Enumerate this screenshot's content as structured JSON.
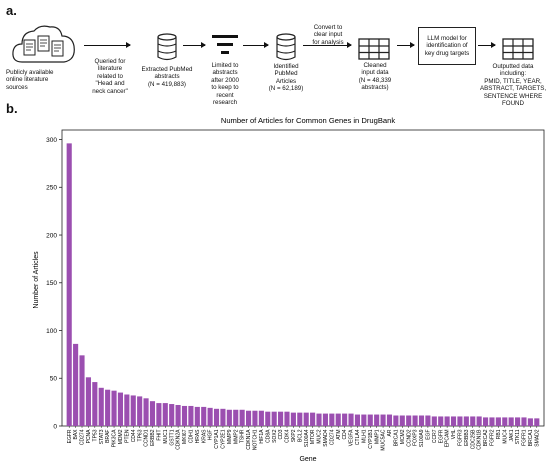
{
  "panels": {
    "a": "a.",
    "b": "b."
  },
  "workflow": {
    "sources": [
      "Publicly available",
      "online literature",
      "sources"
    ],
    "query": [
      "Queried for",
      "literature",
      "related to",
      "\"Head and",
      "neck cancer\""
    ],
    "extracted": [
      "Extracted PubMed",
      "abstracts",
      "(N = 419,883)"
    ],
    "limited": [
      "Limited to",
      "abstracts",
      "after 2000",
      "to keep to",
      "recent",
      "research"
    ],
    "identified": [
      "Identified",
      "PubMed",
      "Articles",
      "(N = 62,189)"
    ],
    "convert": [
      "Convert to",
      "clear input",
      "for analysis"
    ],
    "cleaned": [
      "Cleaned",
      "input data",
      "(N = 48,339",
      "abstracts)"
    ],
    "llm": [
      "LLM model for",
      "identification of",
      "key drug targets"
    ],
    "output": [
      "Outputted data",
      "including:",
      "PMID, TITLE, YEAR,",
      "ABSTRACT, TARGETS,",
      "SENTENCE WHERE",
      "FOUND"
    ],
    "icons": [
      "cloud-documents-icon",
      "database-icon",
      "filter-funnel-icon",
      "database-icon",
      "table-grid-icon",
      "table-grid-icon"
    ]
  },
  "chart_data": {
    "type": "bar",
    "title": "Number of Articles for Common Genes in DrugBank",
    "xlabel": "Gene",
    "ylabel": "Number of Articles",
    "ylim": [
      0,
      310
    ],
    "yticks": [
      0,
      50,
      100,
      150,
      200,
      250,
      300
    ],
    "bar_color": "#9b4fb0",
    "categories": [
      "EGFR",
      "BAX",
      "CD274",
      "PCNA",
      "TP53",
      "STAT3",
      "BRAF",
      "PIK3CA",
      "MDM2",
      "PTEN",
      "CD44",
      "TP63",
      "CCND1",
      "ERBB2",
      "FHIT",
      "MUC1",
      "GSTT1",
      "CDKN2A",
      "MKI67",
      "CDH1",
      "HRAS",
      "KRAS",
      "HGF",
      "CYP1A1",
      "CYP2E1",
      "MMP9",
      "MMP2",
      "TSHR",
      "CDKN1A",
      "NOTCH1",
      "HIF1A",
      "CD8A",
      "SOX2",
      "CD3",
      "CDK4",
      "SKP2",
      "BCL2",
      "S100A4",
      "MTOR",
      "MUC2",
      "SMAD4",
      "CD274",
      "ATM",
      "CD4",
      "VEGFA",
      "CTLA4",
      "MLH1",
      "CYP1B1",
      "MMP1",
      "MUC5AC",
      "AR",
      "BRCA1",
      "MCM2",
      "CCND2",
      "FOXP3",
      "S100A9",
      "EGF",
      "CCR7",
      "EGFR",
      "EPCAM",
      "VHL",
      "FGFR3",
      "ERBB3",
      "CDC25B",
      "CDKN1B",
      "BRCA2",
      "FGFR2",
      "RB1",
      "MUC4",
      "JAK1",
      "STK11",
      "FGFR1",
      "BRCA1",
      "SMAD2"
    ],
    "values": [
      296,
      86,
      74,
      51,
      46,
      40,
      38,
      37,
      35,
      33,
      32,
      31,
      29,
      26,
      24,
      24,
      23,
      22,
      21,
      21,
      20,
      20,
      19,
      18,
      18,
      17,
      17,
      17,
      16,
      16,
      16,
      15,
      15,
      15,
      15,
      14,
      14,
      14,
      14,
      13,
      13,
      13,
      13,
      13,
      13,
      12,
      12,
      12,
      12,
      12,
      12,
      11,
      11,
      11,
      11,
      11,
      11,
      10,
      10,
      10,
      10,
      10,
      10,
      10,
      10,
      9,
      9,
      9,
      9,
      9,
      9,
      9,
      8,
      8
    ]
  }
}
